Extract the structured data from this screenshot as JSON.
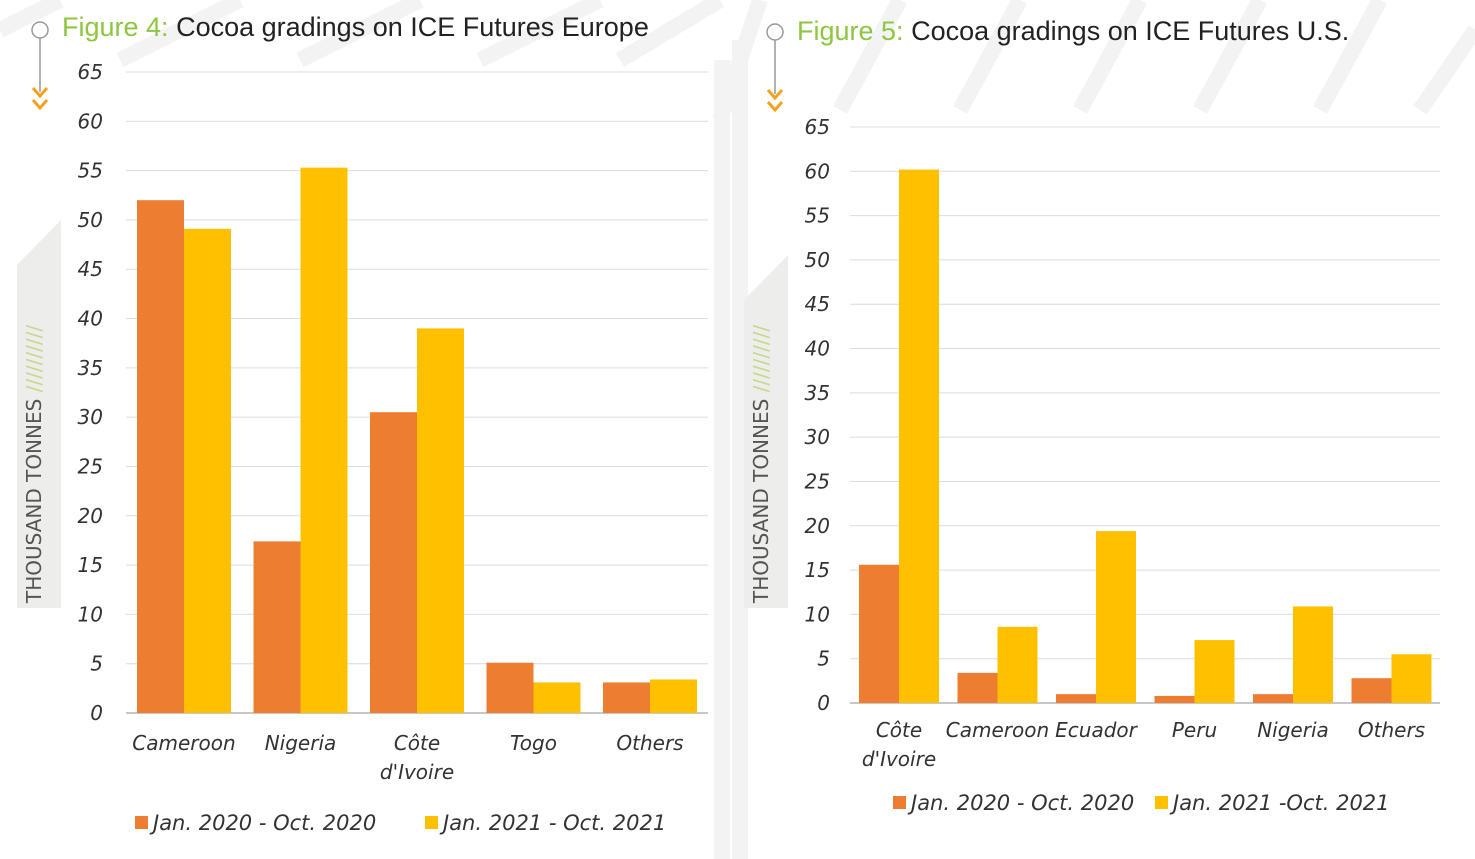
{
  "colors": {
    "series_2020": "#ed7d31",
    "series_2021": "#ffc000",
    "figure_label": "#8dc63f",
    "arrow": "#f4a11d",
    "axis_box": "#ededeb"
  },
  "chart_data": [
    {
      "type": "bar",
      "figure_label": "Figure 4:",
      "title": "Cocoa gradings on ICE Futures Europe",
      "ylabel": "THOUSAND TONNES",
      "ylabel_decoration": "//////////",
      "ylim": [
        0,
        65
      ],
      "yticks": [
        0,
        5,
        10,
        15,
        20,
        25,
        30,
        35,
        40,
        45,
        50,
        55,
        60,
        65
      ],
      "grid": true,
      "legend_placement": "bottom",
      "categories": [
        [
          "Cameroon"
        ],
        [
          "Nigeria"
        ],
        [
          "Côte",
          "d'Ivoire"
        ],
        [
          "Togo"
        ],
        [
          "Others"
        ]
      ],
      "series": [
        {
          "name": "Jan. 2020 - Oct. 2020",
          "values": [
            52.0,
            17.4,
            30.5,
            5.1,
            3.1
          ]
        },
        {
          "name": "Jan. 2021 - Oct. 2021",
          "values": [
            49.1,
            55.3,
            39.0,
            3.1,
            3.4
          ]
        }
      ]
    },
    {
      "type": "bar",
      "figure_label": "Figure 5:",
      "title": "Cocoa gradings on ICE Futures U.S.",
      "ylabel": "THOUSAND TONNES",
      "ylabel_decoration": "//////////",
      "ylim": [
        0,
        65
      ],
      "yticks": [
        0,
        5,
        10,
        15,
        20,
        25,
        30,
        35,
        40,
        45,
        50,
        55,
        60,
        65
      ],
      "grid": true,
      "legend_placement": "bottom",
      "categories": [
        [
          "Côte",
          "d'Ivoire"
        ],
        [
          "Cameroon"
        ],
        [
          "Ecuador"
        ],
        [
          "Peru"
        ],
        [
          "Nigeria"
        ],
        [
          "Others"
        ]
      ],
      "series": [
        {
          "name": "Jan. 2020 - Oct. 2020",
          "values": [
            15.6,
            3.4,
            1.0,
            0.8,
            1.0,
            2.8
          ]
        },
        {
          "name": "Jan. 2021 -Oct. 2021",
          "values": [
            60.2,
            8.6,
            19.4,
            7.1,
            10.9,
            5.5
          ]
        }
      ]
    }
  ]
}
